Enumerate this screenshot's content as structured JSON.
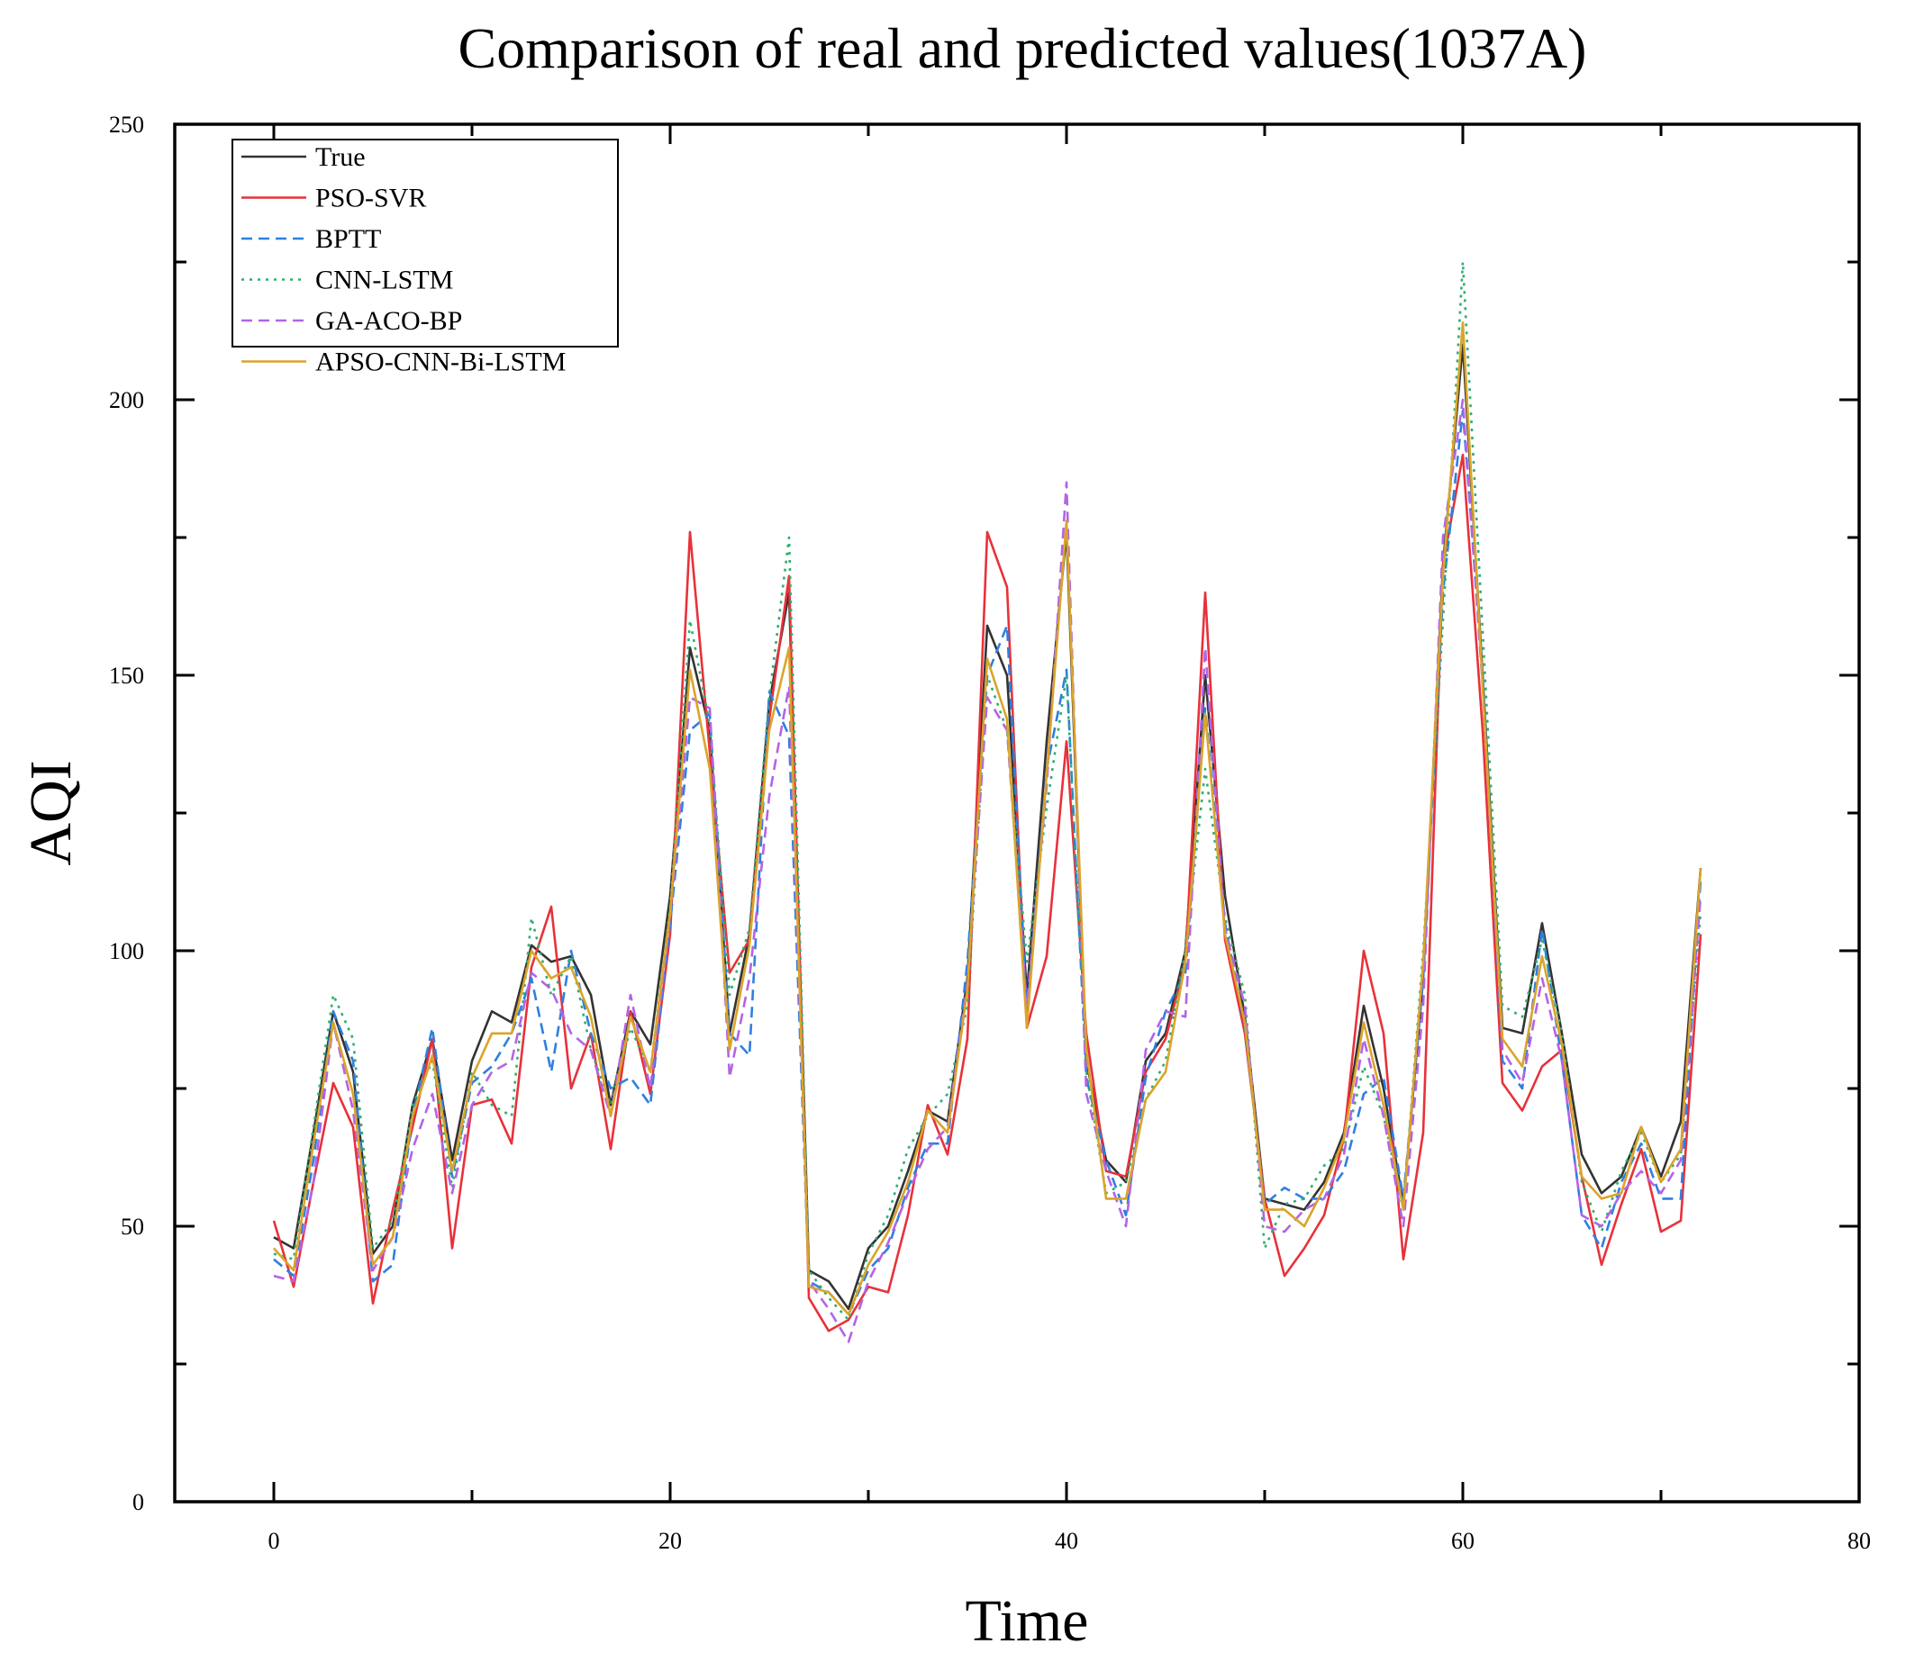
{
  "chart_data": {
    "type": "line",
    "title": "Comparison of real and predicted values(1037A)",
    "xlabel": "Time",
    "ylabel": "AQI",
    "xlim": [
      -5,
      80
    ],
    "ylim": [
      0,
      250
    ],
    "x_ticks": [
      0,
      20,
      40,
      60,
      80
    ],
    "y_ticks": [
      0,
      50,
      100,
      150,
      200,
      250
    ],
    "grid": false,
    "legend_position": "top-left",
    "x": [
      0,
      1,
      2,
      3,
      4,
      5,
      6,
      7,
      8,
      9,
      10,
      11,
      12,
      13,
      14,
      15,
      16,
      17,
      18,
      19,
      20,
      21,
      22,
      23,
      24,
      25,
      26,
      27,
      28,
      29,
      30,
      31,
      32,
      33,
      34,
      35,
      36,
      37,
      38,
      39,
      40,
      41,
      42,
      43,
      44,
      45,
      46,
      47,
      48,
      49,
      50,
      51,
      52,
      53,
      54,
      55,
      56,
      57,
      58,
      59,
      60,
      61,
      62,
      63,
      64,
      65,
      66,
      67,
      68,
      69,
      70,
      71,
      72
    ],
    "series": [
      {
        "name": "True",
        "color": "#333333",
        "dash": "solid",
        "values": [
          48,
          46,
          67,
          89,
          78,
          45,
          50,
          72,
          84,
          62,
          80,
          89,
          87,
          101,
          98,
          99,
          92,
          72,
          89,
          83,
          110,
          155,
          140,
          85,
          103,
          145,
          165,
          42,
          40,
          35,
          46,
          50,
          60,
          71,
          69,
          95,
          159,
          150,
          92,
          138,
          176,
          80,
          62,
          58,
          80,
          85,
          100,
          150,
          110,
          88,
          55,
          54,
          53,
          58,
          67,
          90,
          75,
          54,
          95,
          170,
          210,
          150,
          86,
          85,
          105,
          85,
          63,
          56,
          59,
          68,
          59,
          69,
          115
        ]
      },
      {
        "name": "PSO-SVR",
        "color": "#e8313a",
        "dash": "solid",
        "values": [
          51,
          39,
          58,
          76,
          68,
          36,
          53,
          68,
          84,
          46,
          72,
          73,
          65,
          97,
          108,
          75,
          85,
          64,
          89,
          74,
          103,
          176,
          136,
          96,
          102,
          142,
          168,
          37,
          31,
          33,
          39,
          38,
          52,
          72,
          63,
          84,
          176,
          166,
          86,
          99,
          138,
          85,
          60,
          59,
          78,
          84,
          98,
          165,
          102,
          85,
          55,
          41,
          46,
          52,
          66,
          100,
          85,
          44,
          67,
          170,
          190,
          140,
          76,
          71,
          79,
          82,
          59,
          43,
          54,
          64,
          49,
          51,
          103
        ]
      },
      {
        "name": "BPTT",
        "color": "#2f7fe0",
        "dash": "dashed",
        "values": [
          44,
          41,
          62,
          89,
          80,
          40,
          43,
          70,
          86,
          59,
          76,
          79,
          85,
          95,
          78,
          100,
          85,
          75,
          77,
          72,
          105,
          140,
          143,
          85,
          81,
          147,
          139,
          40,
          38,
          34,
          42,
          46,
          57,
          65,
          65,
          98,
          150,
          159,
          88,
          133,
          151,
          77,
          62,
          52,
          77,
          89,
          96,
          144,
          105,
          86,
          54,
          57,
          55,
          55,
          60,
          74,
          77,
          55,
          95,
          165,
          198,
          150,
          80,
          75,
          104,
          80,
          52,
          46,
          58,
          65,
          55,
          55,
          113
        ]
      },
      {
        "name": "CNN-LSTM",
        "color": "#2eaf6f",
        "dash": "dotted",
        "values": [
          45,
          44,
          68,
          92,
          84,
          46,
          51,
          72,
          80,
          57,
          78,
          72,
          70,
          106,
          92,
          99,
          82,
          72,
          86,
          78,
          108,
          160,
          141,
          92,
          104,
          146,
          175,
          42,
          37,
          33,
          45,
          52,
          64,
          70,
          74,
          90,
          150,
          140,
          98,
          126,
          150,
          78,
          56,
          58,
          73,
          80,
          100,
          133,
          106,
          92,
          46,
          54,
          55,
          61,
          64,
          79,
          70,
          53,
          100,
          160,
          225,
          158,
          90,
          88,
          102,
          85,
          58,
          49,
          60,
          67,
          58,
          63,
          107
        ]
      },
      {
        "name": "GA-ACO-BP",
        "color": "#b264e6",
        "dash": "dashed",
        "values": [
          41,
          40,
          58,
          87,
          71,
          42,
          48,
          64,
          74,
          56,
          72,
          78,
          80,
          96,
          93,
          85,
          82,
          70,
          92,
          75,
          106,
          146,
          144,
          77,
          95,
          128,
          148,
          40,
          35,
          29,
          40,
          47,
          56,
          64,
          68,
          94,
          146,
          140,
          90,
          130,
          185,
          74,
          60,
          50,
          82,
          89,
          88,
          155,
          104,
          90,
          50,
          49,
          53,
          55,
          63,
          84,
          70,
          50,
          90,
          175,
          200,
          148,
          82,
          76,
          95,
          80,
          52,
          50,
          56,
          60,
          56,
          62,
          110
        ]
      },
      {
        "name": "APSO-CNN-Bi-LSTM",
        "color": "#dba42b",
        "dash": "solid",
        "values": [
          46,
          42,
          65,
          87,
          74,
          43,
          48,
          70,
          81,
          60,
          77,
          85,
          85,
          100,
          95,
          97,
          88,
          70,
          88,
          78,
          107,
          151,
          133,
          82,
          101,
          140,
          155,
          39,
          38,
          34,
          43,
          49,
          58,
          71,
          67,
          93,
          153,
          142,
          86,
          132,
          178,
          82,
          55,
          55,
          73,
          78,
          98,
          143,
          103,
          87,
          53,
          53,
          50,
          57,
          66,
          87,
          72,
          53,
          98,
          168,
          214,
          148,
          84,
          79,
          99,
          83,
          59,
          55,
          56,
          68,
          58,
          64,
          115
        ]
      }
    ]
  }
}
